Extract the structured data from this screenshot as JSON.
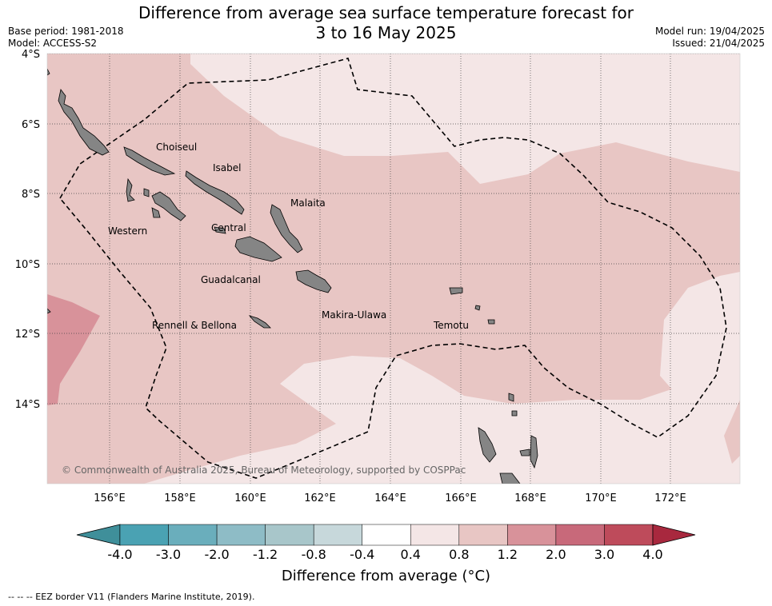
{
  "title": {
    "line1": "Difference from average sea surface temperature forecast for",
    "line2": "3 to 16 May 2025"
  },
  "meta": {
    "base_period": "Base period: 1981-2018",
    "model": "Model: ACCESS-S2",
    "model_run": "Model run: 19/04/2025",
    "issued": "Issued: 21/04/2025"
  },
  "map": {
    "lat_labels": [
      "4°S",
      "6°S",
      "8°S",
      "10°S",
      "12°S",
      "14°S"
    ],
    "lon_labels": [
      "156°E",
      "158°E",
      "160°E",
      "162°E",
      "164°E",
      "166°E",
      "168°E",
      "170°E",
      "172°E"
    ],
    "place_labels": [
      "Choiseul",
      "Isabel",
      "Malaita",
      "Western",
      "Central",
      "Guadalcanal",
      "Rennell & Bellona",
      "Makira-Ulawa",
      "Temotu"
    ],
    "copyright": "© Commonwealth of Australia 2025, Bureau of Meteorology, supported by COSPPac",
    "land_color": "#858585",
    "level_colors": {
      "0.4 to 0.8": "#f4e6e6",
      "0.8 to 1.2": "#e8c6c4",
      "1.2 to 2.0": "#d8929a"
    }
  },
  "colorbar": {
    "ticks": [
      "-4.0",
      "-3.0",
      "-2.0",
      "-1.2",
      "-0.8",
      "-0.4",
      "0.4",
      "0.8",
      "1.2",
      "2.0",
      "3.0",
      "4.0"
    ],
    "colors": [
      "#3f8f9a",
      "#4aa2b3",
      "#6aaebc",
      "#8ebcc6",
      "#a8c6ca",
      "#c7d8db",
      "#ffffff",
      "#f4e6e6",
      "#e8c6c4",
      "#d8929a",
      "#c8697a",
      "#be4b5b",
      "#a8283e"
    ],
    "label": "Difference from average (°C)"
  },
  "footer": "--  --  -- EEZ border V11 (Flanders Marine Institute, 2019)."
}
